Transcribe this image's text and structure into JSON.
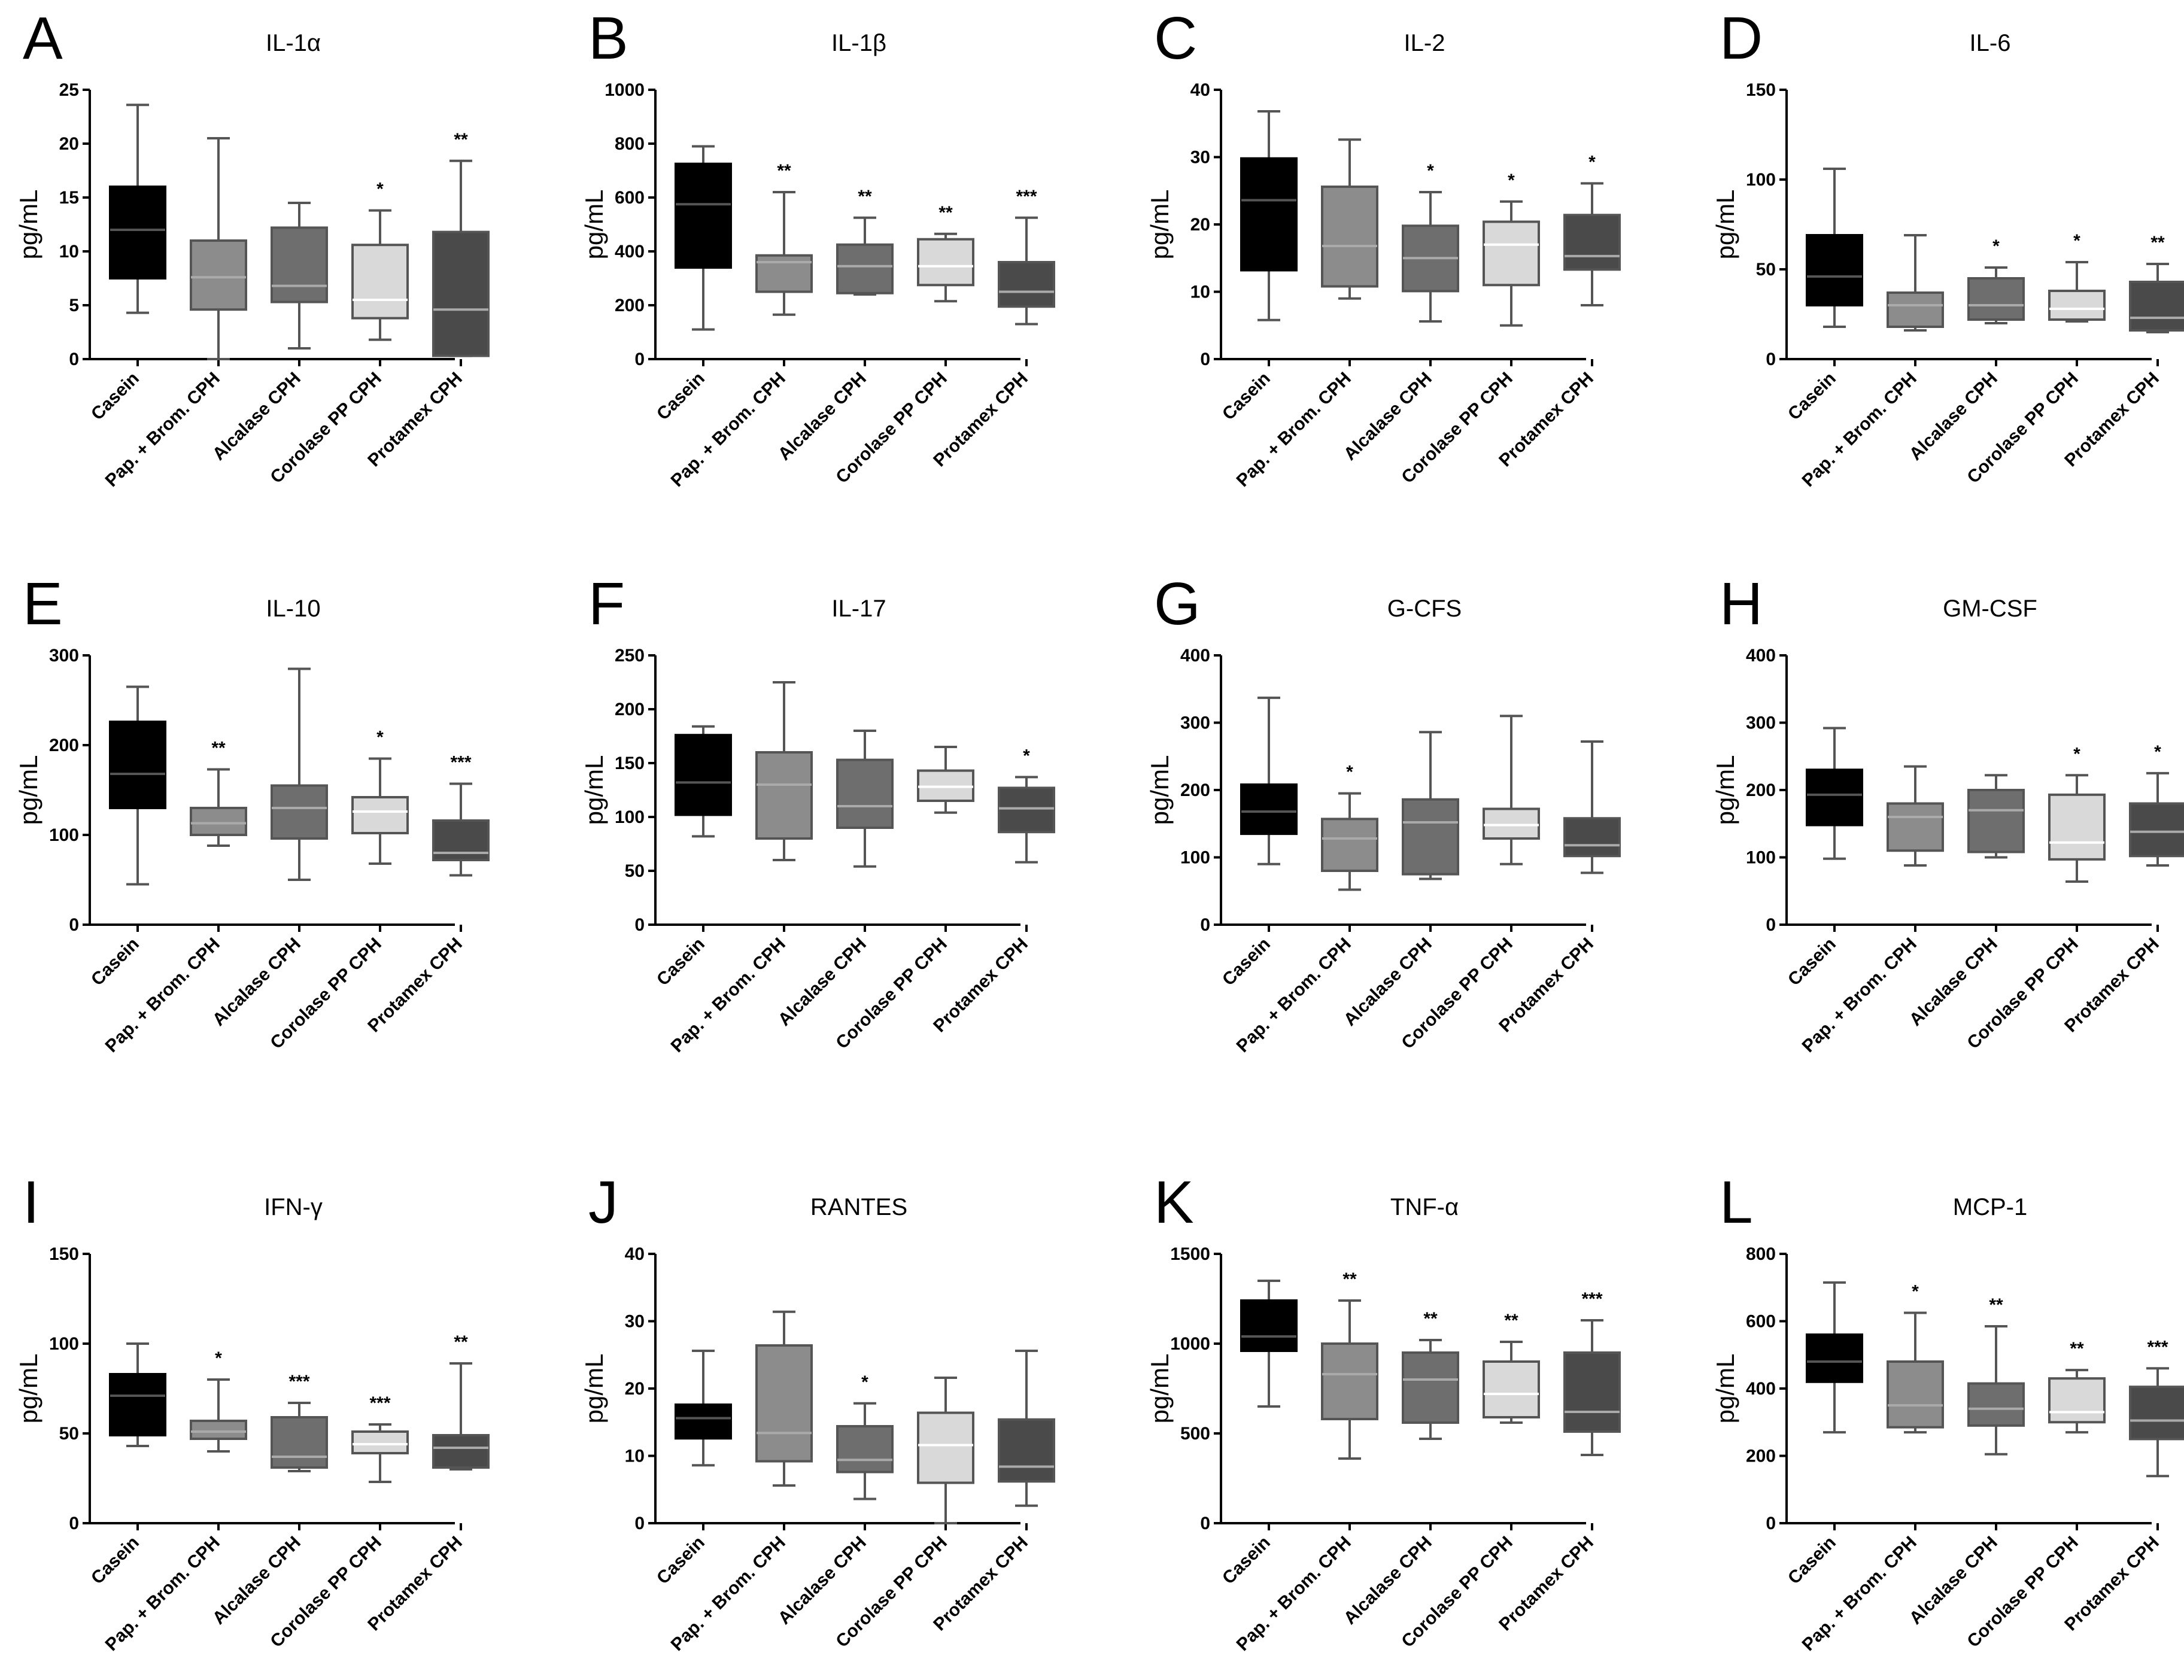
{
  "figure": {
    "box_colors": [
      "#000000",
      "#8c8c8c",
      "#6e6e6e",
      "#d9d9d9",
      "#4a4a4a"
    ],
    "whisker_color": "#555555",
    "median_light": "#aaaaaa",
    "median_dark": "#555555"
  },
  "chart_data": [
    {
      "letter": "A",
      "title": "IL-1α",
      "type": "box",
      "ylabel": "pg/mL",
      "ylim": [
        0,
        25
      ],
      "yticks": [
        "0",
        "5",
        "10",
        "15",
        "20",
        "25"
      ],
      "categories": [
        "Casein",
        "Pap. + Brom. CPH",
        "Alcalase CPH",
        "Corolase PP CPH",
        "Protamex CPH"
      ],
      "boxes": [
        {
          "min": 4.3,
          "q1": 7.5,
          "median": 12.0,
          "q3": 16.0,
          "max": 23.6,
          "sig": ""
        },
        {
          "min": 0.0,
          "q1": 4.6,
          "median": 7.6,
          "q3": 11.0,
          "max": 20.5,
          "sig": ""
        },
        {
          "min": 1.0,
          "q1": 5.3,
          "median": 6.8,
          "q3": 12.2,
          "max": 14.5,
          "sig": ""
        },
        {
          "min": 1.8,
          "q1": 3.8,
          "median": 5.5,
          "q3": 10.6,
          "max": 13.8,
          "sig": "*"
        },
        {
          "min": 0.3,
          "q1": 0.3,
          "median": 4.6,
          "q3": 11.8,
          "max": 18.4,
          "sig": "**"
        }
      ]
    },
    {
      "letter": "B",
      "title": "IL-1β",
      "type": "box",
      "ylabel": "pg/mL",
      "ylim": [
        0,
        1000
      ],
      "yticks": [
        "0",
        "200",
        "400",
        "600",
        "800",
        "1000"
      ],
      "categories": [
        "Casein",
        "Pap. + Brom. CPH",
        "Alcalase CPH",
        "Corolase PP CPH",
        "Protamex CPH"
      ],
      "boxes": [
        {
          "min": 110,
          "q1": 340,
          "median": 575,
          "q3": 725,
          "max": 790,
          "sig": ""
        },
        {
          "min": 165,
          "q1": 250,
          "median": 360,
          "q3": 385,
          "max": 620,
          "sig": "**"
        },
        {
          "min": 240,
          "q1": 245,
          "median": 345,
          "q3": 425,
          "max": 525,
          "sig": "**"
        },
        {
          "min": 215,
          "q1": 275,
          "median": 345,
          "q3": 445,
          "max": 465,
          "sig": "**"
        },
        {
          "min": 130,
          "q1": 195,
          "median": 250,
          "q3": 360,
          "max": 525,
          "sig": "***"
        }
      ]
    },
    {
      "letter": "C",
      "title": "IL-2",
      "type": "box",
      "ylabel": "pg/mL",
      "ylim": [
        0,
        40
      ],
      "yticks": [
        "0",
        "10",
        "20",
        "30",
        "40"
      ],
      "categories": [
        "Casein",
        "Pap. + Brom. CPH",
        "Alcalase CPH",
        "Corolase PP CPH",
        "Protamex CPH"
      ],
      "boxes": [
        {
          "min": 5.8,
          "q1": 13.2,
          "median": 23.6,
          "q3": 29.8,
          "max": 36.8,
          "sig": ""
        },
        {
          "min": 9.0,
          "q1": 10.8,
          "median": 16.8,
          "q3": 25.6,
          "max": 32.6,
          "sig": ""
        },
        {
          "min": 5.6,
          "q1": 10.1,
          "median": 15.0,
          "q3": 19.8,
          "max": 24.8,
          "sig": "*"
        },
        {
          "min": 5.0,
          "q1": 11.0,
          "median": 17.0,
          "q3": 20.4,
          "max": 23.4,
          "sig": "*"
        },
        {
          "min": 8.0,
          "q1": 13.3,
          "median": 15.3,
          "q3": 21.4,
          "max": 26.1,
          "sig": "*"
        }
      ]
    },
    {
      "letter": "D",
      "title": "IL-6",
      "type": "box",
      "ylabel": "pg/mL",
      "ylim": [
        0,
        150
      ],
      "yticks": [
        "0",
        "50",
        "100",
        "150"
      ],
      "categories": [
        "Casein",
        "Pap. + Brom. CPH",
        "Alcalase CPH",
        "Corolase PP CPH",
        "Protamex CPH"
      ],
      "boxes": [
        {
          "min": 18,
          "q1": 30,
          "median": 46,
          "q3": 69,
          "max": 106,
          "sig": ""
        },
        {
          "min": 16,
          "q1": 18,
          "median": 30,
          "q3": 37,
          "max": 69,
          "sig": ""
        },
        {
          "min": 20,
          "q1": 22,
          "median": 30,
          "q3": 45,
          "max": 51,
          "sig": "*"
        },
        {
          "min": 21,
          "q1": 22,
          "median": 28,
          "q3": 38,
          "max": 54,
          "sig": "*"
        },
        {
          "min": 15,
          "q1": 16,
          "median": 23,
          "q3": 43,
          "max": 53,
          "sig": "**"
        }
      ]
    },
    {
      "letter": "E",
      "title": "IL-10",
      "type": "box",
      "ylabel": "pg/mL",
      "ylim": [
        0,
        300
      ],
      "yticks": [
        "0",
        "100",
        "200",
        "300"
      ],
      "categories": [
        "Casein",
        "Pap. + Brom. CPH",
        "Alcalase CPH",
        "Corolase PP CPH",
        "Protamex CPH"
      ],
      "boxes": [
        {
          "min": 45,
          "q1": 130,
          "median": 168,
          "q3": 226,
          "max": 265,
          "sig": ""
        },
        {
          "min": 88,
          "q1": 100,
          "median": 113,
          "q3": 130,
          "max": 173,
          "sig": "**"
        },
        {
          "min": 50,
          "q1": 96,
          "median": 130,
          "q3": 155,
          "max": 285,
          "sig": ""
        },
        {
          "min": 68,
          "q1": 102,
          "median": 126,
          "q3": 142,
          "max": 185,
          "sig": "*"
        },
        {
          "min": 55,
          "q1": 72,
          "median": 80,
          "q3": 116,
          "max": 157,
          "sig": "***"
        }
      ]
    },
    {
      "letter": "F",
      "title": "IL-17",
      "type": "box",
      "ylabel": "pg/mL",
      "ylim": [
        0,
        250
      ],
      "yticks": [
        "0",
        "50",
        "100",
        "150",
        "200",
        "250"
      ],
      "categories": [
        "Casein",
        "Pap. + Brom. CPH",
        "Alcalase CPH",
        "Corolase PP CPH",
        "Protamex CPH"
      ],
      "boxes": [
        {
          "min": 82,
          "q1": 102,
          "median": 132,
          "q3": 176,
          "max": 184,
          "sig": ""
        },
        {
          "min": 60,
          "q1": 80,
          "median": 130,
          "q3": 160,
          "max": 225,
          "sig": ""
        },
        {
          "min": 54,
          "q1": 90,
          "median": 110,
          "q3": 153,
          "max": 180,
          "sig": ""
        },
        {
          "min": 104,
          "q1": 115,
          "median": 128,
          "q3": 143,
          "max": 165,
          "sig": ""
        },
        {
          "min": 58,
          "q1": 86,
          "median": 108,
          "q3": 127,
          "max": 137,
          "sig": "*"
        }
      ]
    },
    {
      "letter": "G",
      "title": "G-CFS",
      "type": "box",
      "ylabel": "pg/mL",
      "ylim": [
        0,
        400
      ],
      "yticks": [
        "0",
        "100",
        "200",
        "300",
        "400"
      ],
      "categories": [
        "Casein",
        "Pap. + Brom. CPH",
        "Alcalase CPH",
        "Corolase PP CPH",
        "Protamex CPH"
      ],
      "boxes": [
        {
          "min": 90,
          "q1": 135,
          "median": 168,
          "q3": 208,
          "max": 337,
          "sig": ""
        },
        {
          "min": 52,
          "q1": 80,
          "median": 128,
          "q3": 157,
          "max": 195,
          "sig": "*"
        },
        {
          "min": 68,
          "q1": 75,
          "median": 152,
          "q3": 186,
          "max": 286,
          "sig": ""
        },
        {
          "min": 90,
          "q1": 128,
          "median": 148,
          "q3": 172,
          "max": 310,
          "sig": ""
        },
        {
          "min": 77,
          "q1": 102,
          "median": 118,
          "q3": 158,
          "max": 272,
          "sig": ""
        }
      ]
    },
    {
      "letter": "H",
      "title": "GM-CSF",
      "type": "box",
      "ylabel": "pg/mL",
      "ylim": [
        0,
        400
      ],
      "yticks": [
        "0",
        "100",
        "200",
        "300",
        "400"
      ],
      "categories": [
        "Casein",
        "Pap. + Brom. CPH",
        "Alcalase CPH",
        "Corolase PP CPH",
        "Protamex CPH"
      ],
      "boxes": [
        {
          "min": 98,
          "q1": 148,
          "median": 193,
          "q3": 230,
          "max": 292,
          "sig": ""
        },
        {
          "min": 88,
          "q1": 110,
          "median": 160,
          "q3": 180,
          "max": 235,
          "sig": ""
        },
        {
          "min": 100,
          "q1": 108,
          "median": 170,
          "q3": 200,
          "max": 222,
          "sig": ""
        },
        {
          "min": 64,
          "q1": 97,
          "median": 122,
          "q3": 193,
          "max": 222,
          "sig": "*"
        },
        {
          "min": 88,
          "q1": 102,
          "median": 138,
          "q3": 180,
          "max": 225,
          "sig": "*"
        }
      ]
    },
    {
      "letter": "I",
      "title": "IFN-γ",
      "type": "box",
      "ylabel": "pg/mL",
      "ylim": [
        0,
        150
      ],
      "yticks": [
        "0",
        "50",
        "100",
        "150"
      ],
      "categories": [
        "Casein",
        "Pap. + Brom. CPH",
        "Alcalase CPH",
        "Corolase PP CPH",
        "Protamex CPH"
      ],
      "boxes": [
        {
          "min": 43,
          "q1": 49,
          "median": 71,
          "q3": 83,
          "max": 100,
          "sig": ""
        },
        {
          "min": 40,
          "q1": 47,
          "median": 51,
          "q3": 57,
          "max": 80,
          "sig": "*"
        },
        {
          "min": 29,
          "q1": 31,
          "median": 37,
          "q3": 59,
          "max": 67,
          "sig": "***"
        },
        {
          "min": 23,
          "q1": 39,
          "median": 44,
          "q3": 51,
          "max": 55,
          "sig": "***"
        },
        {
          "min": 30,
          "q1": 31,
          "median": 42,
          "q3": 49,
          "max": 89,
          "sig": "**"
        }
      ]
    },
    {
      "letter": "J",
      "title": "RANTES",
      "type": "box",
      "ylabel": "pg/mL",
      "ylim": [
        0,
        40
      ],
      "yticks": [
        "0",
        "10",
        "20",
        "30",
        "40"
      ],
      "categories": [
        "Casein",
        "Pap. + Brom. CPH",
        "Alcalase CPH",
        "Corolase PP CPH",
        "Protamex CPH"
      ],
      "boxes": [
        {
          "min": 8.6,
          "q1": 12.6,
          "median": 15.6,
          "q3": 17.6,
          "max": 25.6,
          "sig": ""
        },
        {
          "min": 5.6,
          "q1": 9.2,
          "median": 13.4,
          "q3": 26.4,
          "max": 31.4,
          "sig": ""
        },
        {
          "min": 3.6,
          "q1": 7.6,
          "median": 9.4,
          "q3": 14.4,
          "max": 17.8,
          "sig": "*"
        },
        {
          "min": 0.0,
          "q1": 6.0,
          "median": 11.6,
          "q3": 16.4,
          "max": 21.6,
          "sig": ""
        },
        {
          "min": 2.6,
          "q1": 6.2,
          "median": 8.4,
          "q3": 15.4,
          "max": 25.6,
          "sig": ""
        }
      ]
    },
    {
      "letter": "K",
      "title": "TNF-α",
      "type": "box",
      "ylabel": "pg/mL",
      "ylim": [
        0,
        1500
      ],
      "yticks": [
        "0",
        "500",
        "1000",
        "1500"
      ],
      "categories": [
        "Casein",
        "Pap. + Brom. CPH",
        "Alcalase CPH",
        "Corolase PP CPH",
        "Protamex CPH"
      ],
      "boxes": [
        {
          "min": 650,
          "q1": 960,
          "median": 1040,
          "q3": 1240,
          "max": 1350,
          "sig": ""
        },
        {
          "min": 360,
          "q1": 580,
          "median": 830,
          "q3": 1000,
          "max": 1240,
          "sig": "**"
        },
        {
          "min": 470,
          "q1": 560,
          "median": 800,
          "q3": 950,
          "max": 1020,
          "sig": "**"
        },
        {
          "min": 560,
          "q1": 590,
          "median": 720,
          "q3": 900,
          "max": 1010,
          "sig": "**"
        },
        {
          "min": 380,
          "q1": 510,
          "median": 620,
          "q3": 950,
          "max": 1130,
          "sig": "***"
        }
      ]
    },
    {
      "letter": "L",
      "title": "MCP-1",
      "type": "box",
      "ylabel": "pg/mL",
      "ylim": [
        0,
        800
      ],
      "yticks": [
        "0",
        "200",
        "400",
        "600",
        "800"
      ],
      "categories": [
        "Casein",
        "Pap. + Brom. CPH",
        "Alcalase CPH",
        "Corolase PP CPH",
        "Protamex CPH"
      ],
      "boxes": [
        {
          "min": 270,
          "q1": 420,
          "median": 480,
          "q3": 560,
          "max": 715,
          "sig": ""
        },
        {
          "min": 270,
          "q1": 285,
          "median": 350,
          "q3": 480,
          "max": 625,
          "sig": "*"
        },
        {
          "min": 205,
          "q1": 290,
          "median": 340,
          "q3": 415,
          "max": 585,
          "sig": "**"
        },
        {
          "min": 270,
          "q1": 300,
          "median": 330,
          "q3": 430,
          "max": 455,
          "sig": "**"
        },
        {
          "min": 140,
          "q1": 250,
          "median": 305,
          "q3": 405,
          "max": 460,
          "sig": "***"
        }
      ]
    }
  ]
}
